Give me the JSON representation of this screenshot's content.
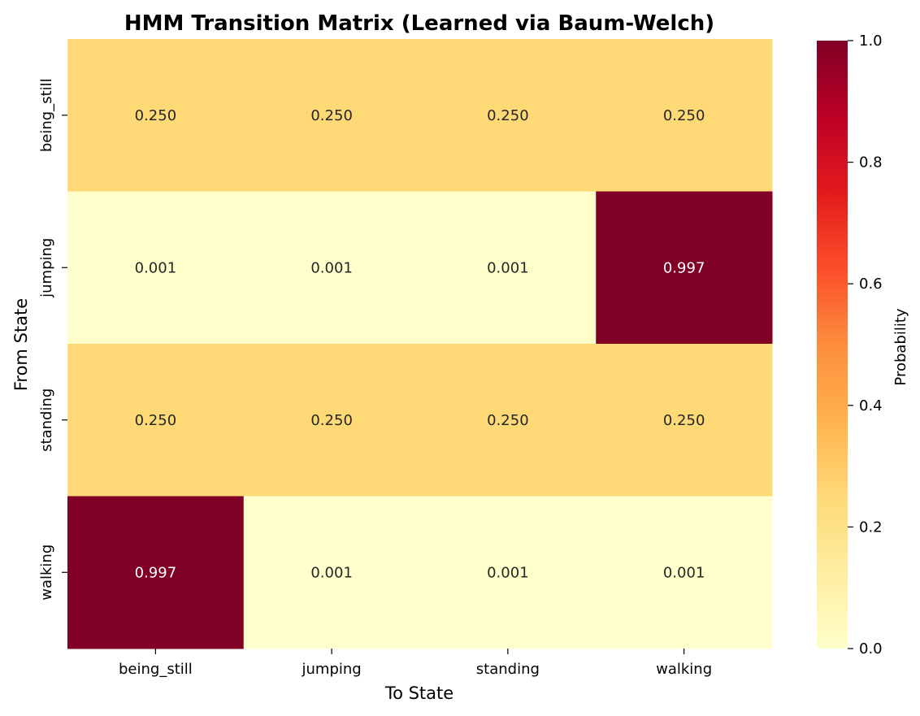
{
  "chart_data": {
    "type": "heatmap",
    "title": "HMM Transition Matrix (Learned via Baum-Welch)",
    "xlabel": "To State",
    "ylabel": "From State",
    "x_categories": [
      "being_still",
      "jumping",
      "standing",
      "walking"
    ],
    "y_categories": [
      "being_still",
      "jumping",
      "standing",
      "walking"
    ],
    "values": [
      [
        0.25,
        0.25,
        0.25,
        0.25
      ],
      [
        0.001,
        0.001,
        0.001,
        0.997
      ],
      [
        0.25,
        0.25,
        0.25,
        0.25
      ],
      [
        0.997,
        0.001,
        0.001,
        0.001
      ]
    ],
    "cell_labels": [
      [
        "0.250",
        "0.250",
        "0.250",
        "0.250"
      ],
      [
        "0.001",
        "0.001",
        "0.001",
        "0.997"
      ],
      [
        "0.250",
        "0.250",
        "0.250",
        "0.250"
      ],
      [
        "0.997",
        "0.001",
        "0.001",
        "0.001"
      ]
    ],
    "colorbar": {
      "label": "Probability",
      "range": [
        0.0,
        1.0
      ],
      "ticks": [
        0.0,
        0.2,
        0.4,
        0.6,
        0.8,
        1.0
      ],
      "tick_labels": [
        "0.0",
        "0.2",
        "0.4",
        "0.6",
        "0.8",
        "1.0"
      ],
      "colormap": "YlOrRd"
    }
  }
}
